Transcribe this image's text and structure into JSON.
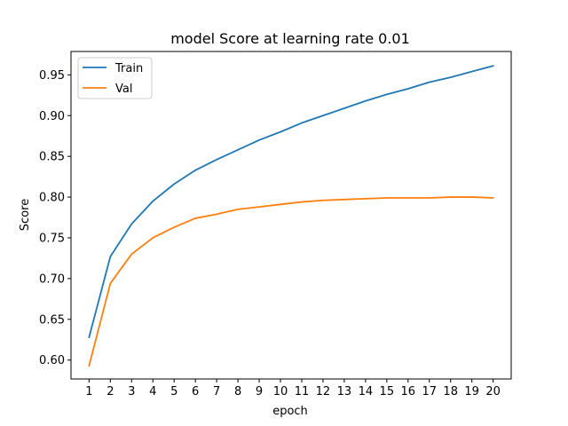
{
  "chart_data": {
    "type": "line",
    "title": "model Score at learning rate 0.01",
    "xlabel": "epoch",
    "ylabel": "Score",
    "x": [
      1,
      2,
      3,
      4,
      5,
      6,
      7,
      8,
      9,
      10,
      11,
      12,
      13,
      14,
      15,
      16,
      17,
      18,
      19,
      20
    ],
    "xlim": [
      0.15,
      20.85
    ],
    "ylim": [
      0.5768,
      0.9787
    ],
    "y_ticks": [
      "0.60",
      "0.65",
      "0.70",
      "0.75",
      "0.80",
      "0.85",
      "0.90",
      "0.95"
    ],
    "grid": false,
    "legend_position": "top-left",
    "series": [
      {
        "name": "Train",
        "color": "#1f77b4",
        "values": [
          0.628,
          0.727,
          0.767,
          0.795,
          0.816,
          0.833,
          0.846,
          0.858,
          0.87,
          0.88,
          0.891,
          0.9,
          0.909,
          0.918,
          0.926,
          0.933,
          0.941,
          0.947,
          0.954,
          0.961
        ]
      },
      {
        "name": "Val",
        "color": "#ff7f0e",
        "values": [
          0.593,
          0.694,
          0.73,
          0.75,
          0.763,
          0.774,
          0.779,
          0.785,
          0.788,
          0.791,
          0.794,
          0.796,
          0.797,
          0.798,
          0.799,
          0.799,
          0.799,
          0.8,
          0.8,
          0.799
        ]
      }
    ]
  }
}
